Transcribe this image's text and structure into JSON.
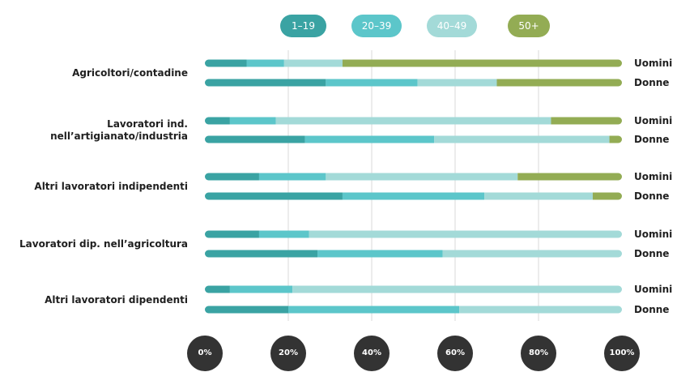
{
  "chart_data": {
    "type": "bar",
    "stacked": true,
    "orientation": "horizontal",
    "percent_scale": true,
    "legend_placement": "top",
    "grid": true,
    "categories": [
      "Agricoltori/contadine",
      "Lavoratori ind. nell’artigianato/industria",
      "Altri lavoratori indipendenti",
      "Lavoratori dip. nell’agricoltura",
      "Altri lavoratori dipendenti"
    ],
    "category_lines": [
      [
        "Agricoltori/contadine"
      ],
      [
        "Lavoratori ind.",
        "nell’artigianato/industria"
      ],
      [
        "Altri lavoratori indipendenti"
      ],
      [
        "Lavoratori dip. nell’agricoltura"
      ],
      [
        "Altri lavoratori dipendenti"
      ]
    ],
    "groups": [
      "Uomini",
      "Donne"
    ],
    "legend": [
      {
        "label": "1–19",
        "color": "#3aa3a3"
      },
      {
        "label": "20–39",
        "color": "#5cc6ca"
      },
      {
        "label": "40–49",
        "color": "#a3dad8"
      },
      {
        "label": "50+",
        "color": "#93ac54"
      }
    ],
    "xlim": [
      0,
      100
    ],
    "x_ticks": [
      "0%",
      "20%",
      "40%",
      "60%",
      "80%",
      "100%"
    ],
    "rows": [
      {
        "category": "Agricoltori/contadine",
        "group": "Uomini",
        "values": [
          10,
          9,
          14,
          67
        ]
      },
      {
        "category": "Agricoltori/contadine",
        "group": "Donne",
        "values": [
          29,
          22,
          19,
          30
        ]
      },
      {
        "category": "Lavoratori ind. nell’artigianato/industria",
        "group": "Uomini",
        "values": [
          6,
          11,
          66,
          17
        ]
      },
      {
        "category": "Lavoratori ind. nell’artigianato/industria",
        "group": "Donne",
        "values": [
          24,
          31,
          42,
          3
        ]
      },
      {
        "category": "Altri lavoratori indipendenti",
        "group": "Uomini",
        "values": [
          13,
          16,
          46,
          25
        ]
      },
      {
        "category": "Altri lavoratori indipendenti",
        "group": "Donne",
        "values": [
          33,
          34,
          26,
          7
        ]
      },
      {
        "category": "Lavoratori dip. nell’agricoltura",
        "group": "Uomini",
        "values": [
          13,
          12,
          75,
          0
        ]
      },
      {
        "category": "Lavoratori dip. nell’agricoltura",
        "group": "Donne",
        "values": [
          27,
          30,
          43,
          0
        ]
      },
      {
        "category": "Altri lavoratori dipendenti",
        "group": "Uomini",
        "values": [
          6,
          15,
          79,
          0
        ]
      },
      {
        "category": "Altri lavoratori dipendenti",
        "group": "Donne",
        "values": [
          20,
          41,
          39,
          0
        ]
      }
    ]
  }
}
